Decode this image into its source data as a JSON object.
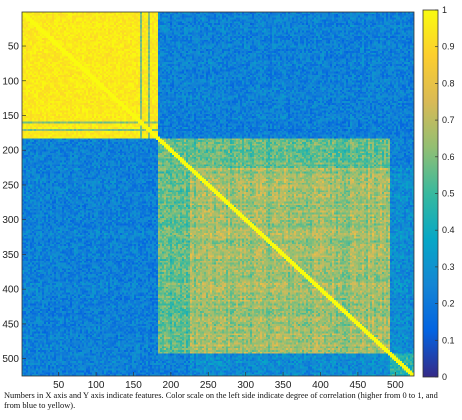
{
  "chart_data": {
    "type": "heatmap",
    "title": "",
    "xlabel": "",
    "ylabel": "",
    "x_ticks": [
      "50",
      "100",
      "150",
      "200",
      "250",
      "300",
      "350",
      "400",
      "450",
      "500"
    ],
    "y_ticks": [
      "50",
      "100",
      "150",
      "200",
      "250",
      "300",
      "350",
      "400",
      "450",
      "500"
    ],
    "xlim": [
      1,
      525
    ],
    "ylim": [
      1,
      525
    ],
    "y_direction": "top-to-bottom",
    "n_features": 525,
    "colorbar": {
      "colormap": "parula",
      "range": [
        0,
        1
      ],
      "ticks": [
        "0",
        "0.1",
        "0.2",
        "0.3",
        "0.4",
        "0.5",
        "0.6",
        "0.7",
        "0.8",
        "0.9",
        "1"
      ],
      "colors": [
        "#352a87",
        "#0363e1",
        "#1485d4",
        "#06a7c6",
        "#38b99e",
        "#92bf73",
        "#d9ba56",
        "#fcce2e",
        "#f9fb0e"
      ]
    },
    "blocks": [
      {
        "features": [
          1,
          180
        ],
        "within_correlation": 0.95
      },
      {
        "features": [
          181,
          225
        ],
        "within_correlation": 0.6
      },
      {
        "features": [
          226,
          490
        ],
        "within_correlation": 0.7
      },
      {
        "features": [
          491,
          525
        ],
        "within_correlation": 0.5
      }
    ],
    "between_block_correlation": [
      {
        "blocks": [
          "1-180",
          "181-525"
        ],
        "value": 0.25
      },
      {
        "blocks": [
          "181-225",
          "226-490"
        ],
        "value": 0.6
      },
      {
        "blocks": [
          "226-490",
          "491-525"
        ],
        "value": 0.3
      }
    ],
    "diagonal": 1.0
  },
  "caption": "Numbers in X axis and Y axis indicate features. Color scale on the left side indicate degree of correlation (higher from 0 to 1, and from blue to yellow)."
}
